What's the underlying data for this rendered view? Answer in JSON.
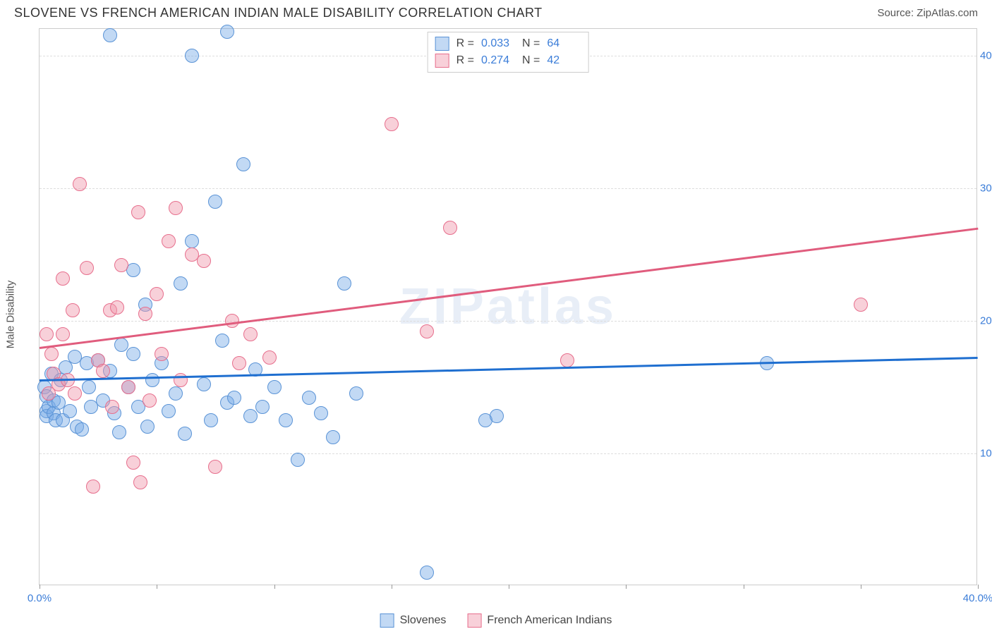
{
  "title": "SLOVENE VS FRENCH AMERICAN INDIAN MALE DISABILITY CORRELATION CHART",
  "source": "Source: ZipAtlas.com",
  "watermark": "ZIPatlas",
  "y_axis_label": "Male Disability",
  "chart": {
    "type": "scatter",
    "xlim": [
      0,
      40
    ],
    "ylim": [
      0,
      42
    ],
    "x_ticks": [
      0,
      5,
      10,
      15,
      20,
      25,
      30,
      35,
      40
    ],
    "x_tick_labels": {
      "0": "0.0%",
      "40": "40.0%"
    },
    "y_gridlines": [
      10,
      20,
      30,
      40
    ],
    "y_tick_labels": {
      "10": "10.0%",
      "20": "20.0%",
      "30": "30.0%",
      "40": "40.0%"
    },
    "background_color": "#ffffff",
    "grid_color": "#dddddd",
    "border_color": "#cccccc",
    "axis_label_color": "#3b7dd8",
    "marker_radius": 10,
    "series": [
      {
        "name": "Slovenes",
        "fill": "rgba(120,170,230,0.45)",
        "stroke": "#5a93d6",
        "R": "0.033",
        "N": "64",
        "trend": {
          "x1": 0,
          "y1": 15.6,
          "x2": 40,
          "y2": 17.3,
          "color": "#1f6fd0",
          "width": 2.5
        },
        "points": [
          [
            0.2,
            15.0
          ],
          [
            0.3,
            13.2
          ],
          [
            0.3,
            14.3
          ],
          [
            0.3,
            12.8
          ],
          [
            0.4,
            13.5
          ],
          [
            0.5,
            16.0
          ],
          [
            0.6,
            13.0
          ],
          [
            0.6,
            14.0
          ],
          [
            0.7,
            12.5
          ],
          [
            0.8,
            13.8
          ],
          [
            0.9,
            15.5
          ],
          [
            1.0,
            12.5
          ],
          [
            1.1,
            16.5
          ],
          [
            1.3,
            13.2
          ],
          [
            1.5,
            17.3
          ],
          [
            1.6,
            12.0
          ],
          [
            1.8,
            11.8
          ],
          [
            2.0,
            16.8
          ],
          [
            2.1,
            15.0
          ],
          [
            2.2,
            13.5
          ],
          [
            2.5,
            17.0
          ],
          [
            2.7,
            14.0
          ],
          [
            3.0,
            16.2
          ],
          [
            3.0,
            41.5
          ],
          [
            3.2,
            13.0
          ],
          [
            3.4,
            11.6
          ],
          [
            3.5,
            18.2
          ],
          [
            3.8,
            15.0
          ],
          [
            4.0,
            23.8
          ],
          [
            4.0,
            17.5
          ],
          [
            4.2,
            13.5
          ],
          [
            4.5,
            21.2
          ],
          [
            4.6,
            12.0
          ],
          [
            4.8,
            15.5
          ],
          [
            5.2,
            16.8
          ],
          [
            5.5,
            13.2
          ],
          [
            5.8,
            14.5
          ],
          [
            6.0,
            22.8
          ],
          [
            6.2,
            11.5
          ],
          [
            6.5,
            26.0
          ],
          [
            6.5,
            40.0
          ],
          [
            7.0,
            15.2
          ],
          [
            7.3,
            12.5
          ],
          [
            7.5,
            29.0
          ],
          [
            7.8,
            18.5
          ],
          [
            8.0,
            13.8
          ],
          [
            8.3,
            14.2
          ],
          [
            8.7,
            31.8
          ],
          [
            9.0,
            12.8
          ],
          [
            9.2,
            16.3
          ],
          [
            9.5,
            13.5
          ],
          [
            10.0,
            15.0
          ],
          [
            10.5,
            12.5
          ],
          [
            11.0,
            9.5
          ],
          [
            11.5,
            14.2
          ],
          [
            12.0,
            13.0
          ],
          [
            12.5,
            11.2
          ],
          [
            13.0,
            22.8
          ],
          [
            13.5,
            14.5
          ],
          [
            16.5,
            1.0
          ],
          [
            19.0,
            12.5
          ],
          [
            19.5,
            12.8
          ],
          [
            31.0,
            16.8
          ],
          [
            8.0,
            41.8
          ]
        ]
      },
      {
        "name": "French American Indians",
        "fill": "rgba(240,150,170,0.45)",
        "stroke": "#e76f8d",
        "R": "0.274",
        "N": "42",
        "trend": {
          "x1": 0,
          "y1": 18.0,
          "x2": 40,
          "y2": 27.0,
          "color": "#e05c7d",
          "width": 2.5
        },
        "points": [
          [
            0.3,
            19.0
          ],
          [
            0.4,
            14.5
          ],
          [
            0.5,
            17.5
          ],
          [
            0.6,
            16.0
          ],
          [
            0.8,
            15.2
          ],
          [
            1.0,
            19.0
          ],
          [
            1.0,
            23.2
          ],
          [
            1.2,
            15.5
          ],
          [
            1.4,
            20.8
          ],
          [
            1.5,
            14.5
          ],
          [
            1.7,
            30.3
          ],
          [
            2.0,
            24.0
          ],
          [
            2.3,
            7.5
          ],
          [
            2.5,
            17.0
          ],
          [
            2.7,
            16.2
          ],
          [
            3.0,
            20.8
          ],
          [
            3.1,
            13.5
          ],
          [
            3.3,
            21.0
          ],
          [
            3.5,
            24.2
          ],
          [
            3.8,
            15.0
          ],
          [
            4.0,
            9.3
          ],
          [
            4.2,
            28.2
          ],
          [
            4.3,
            7.8
          ],
          [
            4.5,
            20.5
          ],
          [
            4.7,
            14.0
          ],
          [
            5.0,
            22.0
          ],
          [
            5.2,
            17.5
          ],
          [
            5.5,
            26.0
          ],
          [
            5.8,
            28.5
          ],
          [
            6.0,
            15.5
          ],
          [
            6.5,
            25.0
          ],
          [
            7.0,
            24.5
          ],
          [
            7.5,
            9.0
          ],
          [
            8.2,
            20.0
          ],
          [
            8.5,
            16.8
          ],
          [
            9.0,
            19.0
          ],
          [
            9.8,
            17.2
          ],
          [
            15.0,
            34.8
          ],
          [
            16.5,
            19.2
          ],
          [
            17.5,
            27.0
          ],
          [
            22.5,
            17.0
          ],
          [
            35.0,
            21.2
          ]
        ]
      }
    ]
  },
  "r_legend_labels": {
    "R": "R =",
    "N": "N ="
  }
}
